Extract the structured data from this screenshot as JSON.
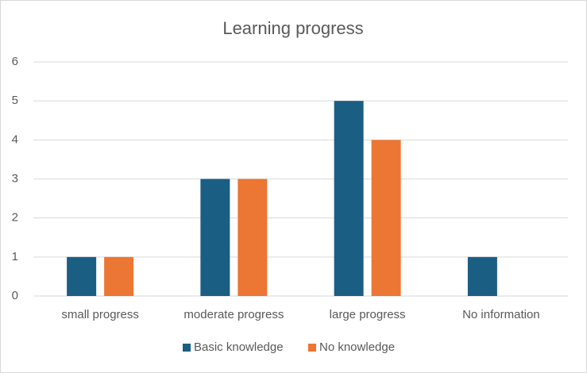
{
  "chart_data": {
    "type": "bar",
    "title": "Learning progress",
    "categories": [
      "small progress",
      "moderate progress",
      "large progress",
      "No information"
    ],
    "series": [
      {
        "name": "Basic knowledge",
        "color": "#1b5e83",
        "values": [
          1,
          3,
          5,
          1
        ]
      },
      {
        "name": "No knowledge",
        "color": "#ec7634",
        "values": [
          1,
          3,
          4,
          0
        ]
      }
    ],
    "ylim": [
      0,
      6
    ],
    "yticks": [
      0,
      1,
      2,
      3,
      4,
      5,
      6
    ],
    "grid": true,
    "legend": "bottom"
  }
}
